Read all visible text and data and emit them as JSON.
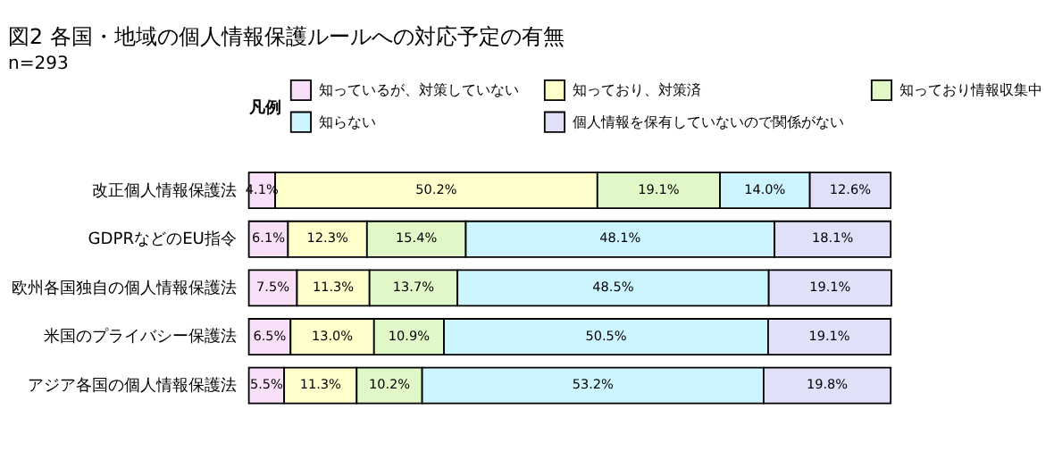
{
  "chart_data": {
    "type": "bar",
    "orientation": "horizontal",
    "stacked": true,
    "title": "図2 各国・地域の個人情報保護ルールへの対応予定の有無",
    "annotations": [
      "n=293"
    ],
    "legend_title": "凡例",
    "legend": "top",
    "categories": [
      "改正個人情報保護法",
      "GDPRなどのEU指令",
      "欧州各国独自の個人情報保護法",
      "米国のプライバシー保護法",
      "アジア各国の個人情報保護法"
    ],
    "xlim": [
      0,
      100.1
    ],
    "tick_labels": "y",
    "series": [
      {
        "name": "知っているが、対策していない",
        "color": "#f9e0f9",
        "values": [
          4.1,
          6.1,
          7.5,
          6.5,
          5.5
        ],
        "value_labels": [
          "4.1%",
          "6.1%",
          "7.5%",
          "6.5%",
          "5.5%"
        ]
      },
      {
        "name": "知っており、対策済",
        "color": "#ffffcc",
        "values": [
          50.2,
          12.3,
          11.3,
          13.0,
          11.3
        ],
        "value_labels": [
          "50.2%",
          "12.3%",
          "11.3%",
          "13.0%",
          "11.3%"
        ]
      },
      {
        "name": "知っており情報収集中",
        "color": "#e0f8c8",
        "values": [
          19.1,
          15.4,
          13.7,
          10.9,
          10.2
        ],
        "value_labels": [
          "19.1%",
          "15.4%",
          "13.7%",
          "10.9%",
          "10.2%"
        ]
      },
      {
        "name": "知らない",
        "color": "#ccf5ff",
        "values": [
          14.0,
          48.1,
          48.5,
          50.5,
          53.2
        ],
        "value_labels": [
          "14.0%",
          "48.1%",
          "48.5%",
          "50.5%",
          "53.2%"
        ]
      },
      {
        "name": "個人情報を保有していないので関係がない",
        "color": "#e0e0f8",
        "values": [
          12.6,
          18.1,
          19.1,
          19.1,
          19.8
        ],
        "value_labels": [
          "12.6%",
          "18.1%",
          "19.1%",
          "19.1%",
          "19.8%"
        ]
      }
    ]
  }
}
